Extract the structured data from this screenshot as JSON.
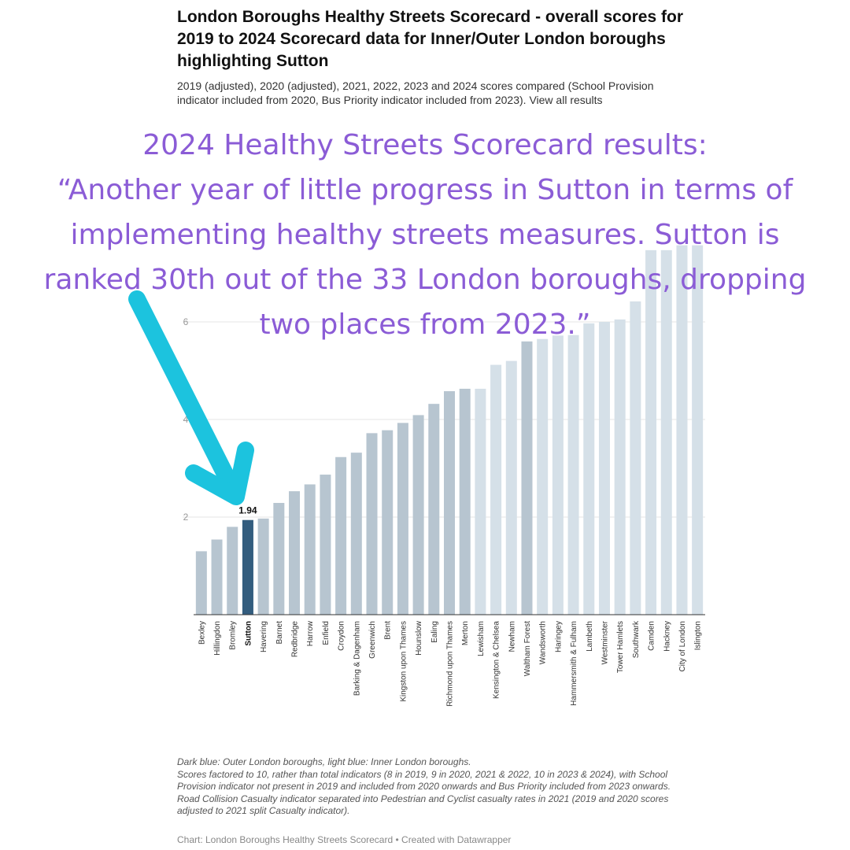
{
  "header": {
    "title": "London Boroughs Healthy Streets Scorecard - overall scores for 2019 to 2024 Scorecard data for Inner/Outer London boroughs highlighting Sutton",
    "subtitle": "2019 (adjusted), 2020 (adjusted), 2021, 2022, 2023 and 2024 scores compared (School Provision indicator included from 2020, Bus Priority indicator included from 2023). View all results"
  },
  "overlay": {
    "lines": [
      "2024 Healthy Streets Scorecard results:",
      "“Another year of little progress in Sutton in terms of",
      "implementing healthy streets measures. Sutton is",
      "ranked 30th out of the 33 London boroughs, dropping",
      "two places from 2023.”"
    ],
    "text_color": "#8b5cd6",
    "arrow_color": "#1cc3de",
    "arrow_icon": "arrow-down-left-icon"
  },
  "chart_data": {
    "type": "bar",
    "ylim": [
      0,
      7.5
    ],
    "yticks": [
      2,
      4,
      6
    ],
    "categories": [
      "Bexley",
      "Hillingdon",
      "Bromley",
      "Sutton",
      "Havering",
      "Barnet",
      "Redbridge",
      "Harrow",
      "Enfield",
      "Croydon",
      "Barking & Dagenham",
      "Greenwich",
      "Brent",
      "Kingston upon Thames",
      "Hounslow",
      "Ealing",
      "Richmond upon Thames",
      "Merton",
      "Lewisham",
      "Kensington & Chelsea",
      "Newham",
      "Waltham Forest",
      "Wandsworth",
      "Haringey",
      "Hammersmith & Fulham",
      "Lambeth",
      "Westminster",
      "Tower Hamlets",
      "Southwark",
      "Camden",
      "Hackney",
      "City of London",
      "Islington"
    ],
    "values": [
      1.3,
      1.54,
      1.8,
      1.94,
      1.97,
      2.29,
      2.53,
      2.67,
      2.87,
      3.23,
      3.32,
      3.72,
      3.78,
      3.93,
      4.09,
      4.32,
      4.58,
      4.63,
      4.63,
      5.12,
      5.2,
      5.6,
      5.65,
      5.72,
      5.73,
      5.97,
      6.0,
      6.05,
      6.42,
      7.47,
      7.47,
      7.57,
      7.57
    ],
    "groups": [
      "outer",
      "outer",
      "outer",
      "outer",
      "outer",
      "outer",
      "outer",
      "outer",
      "outer",
      "outer",
      "outer",
      "outer",
      "outer",
      "outer",
      "outer",
      "outer",
      "outer",
      "outer",
      "inner",
      "inner",
      "inner",
      "outer",
      "inner",
      "inner",
      "inner",
      "inner",
      "inner",
      "inner",
      "inner",
      "inner",
      "inner",
      "inner",
      "inner"
    ],
    "highlight": "Sutton",
    "highlight_label": "1.94",
    "colors": {
      "outer": "#b7c5d0",
      "inner": "#d5e0e8",
      "highlight": "#335d7e"
    }
  },
  "notes": [
    "Dark blue: Outer London boroughs, light blue: Inner London boroughs.",
    "Scores factored to 10, rather than total indicators (8 in 2019, 9 in 2020, 2021 & 2022, 10 in 2023 & 2024), with School Provision indicator not present in 2019 and included from 2020 onwards and Bus Priority included from 2023 onwards.",
    "Road Collision Casualty indicator separated into Pedestrian and Cyclist casualty rates in 2021 (2019 and 2020 scores adjusted to 2021 split Casualty indicator)."
  ],
  "source": "Chart: London Boroughs Healthy Streets Scorecard • Created with Datawrapper"
}
